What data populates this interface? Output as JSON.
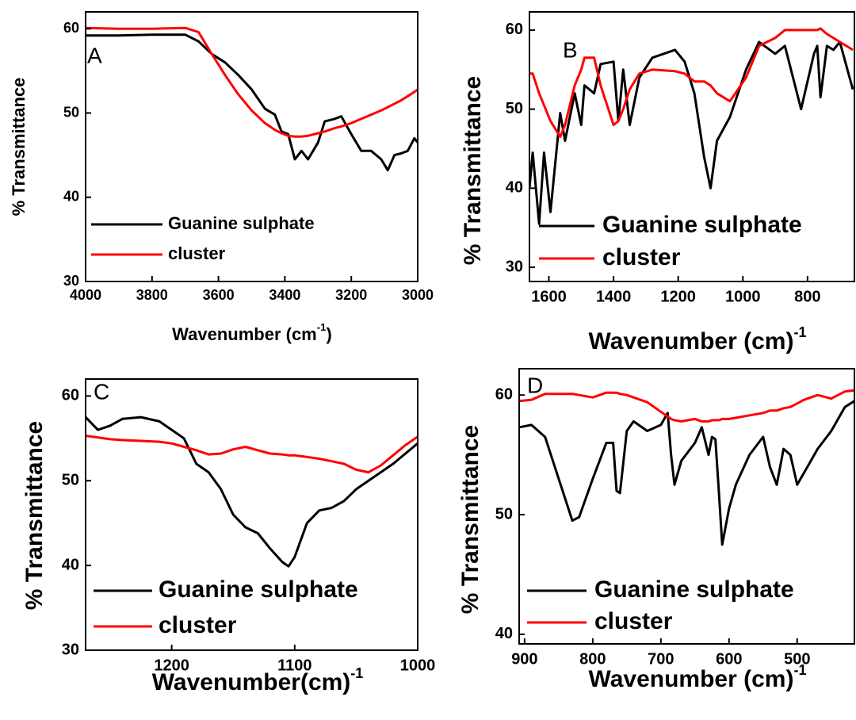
{
  "chart_data": [
    {
      "type": "line",
      "panel_label": "A",
      "y_label": "% Transmittance",
      "x_label": "Wavenumber (cm",
      "x_label_sup": "-1",
      "x_label_end": ")",
      "xlim": [
        4000,
        3000
      ],
      "xticks": [
        4000,
        3800,
        3600,
        3400,
        3200,
        3000
      ],
      "ylim": [
        30,
        62
      ],
      "yticks": [
        30,
        40,
        50,
        60
      ],
      "x": [
        4000,
        3900,
        3800,
        3700,
        3660,
        3620,
        3580,
        3540,
        3500,
        3460,
        3430,
        3410,
        3390,
        3370,
        3350,
        3330,
        3300,
        3280,
        3250,
        3230,
        3200,
        3170,
        3140,
        3110,
        3090,
        3070,
        3050,
        3030,
        3010,
        3000
      ],
      "series": [
        {
          "name": "Guanine sulphate",
          "color": "#000000",
          "values": [
            59.2,
            59.2,
            59.3,
            59.3,
            58.5,
            57.0,
            56.0,
            54.5,
            52.8,
            50.5,
            49.8,
            47.8,
            47.5,
            44.5,
            45.5,
            44.5,
            46.5,
            49.0,
            49.3,
            49.6,
            47.5,
            45.5,
            45.5,
            44.5,
            43.2,
            45.0,
            45.2,
            45.5,
            47.0,
            46.5
          ]
        },
        {
          "name": "cluster",
          "color": "#ff0000",
          "values": [
            60.1,
            60.0,
            60.0,
            60.1,
            59.6,
            57.0,
            54.5,
            52.2,
            50.3,
            48.8,
            48.0,
            47.6,
            47.3,
            47.2,
            47.2,
            47.3,
            47.6,
            47.8,
            48.2,
            48.4,
            48.8,
            49.3,
            49.8,
            50.3,
            50.7,
            51.1,
            51.5,
            52.0,
            52.5,
            52.8
          ]
        }
      ]
    },
    {
      "type": "line",
      "panel_label": "B",
      "y_label": "% Transmittance",
      "x_label": "Wavenumber (cm)",
      "x_label_sup": "-1",
      "xlim": [
        1660,
        655
      ],
      "xticks": [
        1600,
        1400,
        1200,
        1000,
        800
      ],
      "ylim": [
        28.2,
        62.3
      ],
      "yticks": [
        30,
        40,
        50,
        60
      ],
      "x": [
        1660,
        1650,
        1630,
        1615,
        1595,
        1565,
        1550,
        1520,
        1500,
        1490,
        1460,
        1440,
        1400,
        1385,
        1370,
        1350,
        1320,
        1280,
        1210,
        1180,
        1150,
        1120,
        1100,
        1080,
        1040,
        990,
        950,
        900,
        870,
        820,
        780,
        770,
        760,
        740,
        720,
        700,
        660
      ],
      "series": [
        {
          "name": "Guanine sulphate",
          "color": "#000000",
          "values": [
            40,
            44.5,
            35.5,
            44.5,
            37,
            49.5,
            46,
            52,
            48,
            53,
            52,
            55.7,
            56,
            48.5,
            55,
            48,
            54,
            56.5,
            57.5,
            56,
            52,
            44,
            40,
            46,
            49,
            55,
            58.5,
            57,
            58,
            50,
            57,
            58,
            51.5,
            58,
            57.5,
            58.5,
            52.5
          ]
        },
        {
          "name": "cluster",
          "color": "#ff0000",
          "values": [
            54.5,
            54.5,
            52,
            50.5,
            48.5,
            46.5,
            48,
            53,
            55,
            56.5,
            56.5,
            53,
            48,
            48.5,
            50,
            52.5,
            54.5,
            55,
            54.8,
            54.5,
            53.5,
            53.5,
            53,
            52,
            51,
            54,
            58,
            59,
            60,
            60,
            60,
            60,
            60.2,
            59.5,
            59,
            58.5,
            57.5
          ]
        }
      ]
    },
    {
      "type": "line",
      "panel_label": "C",
      "y_label": "% Transmittance",
      "x_label": "Wavenumber(cm)",
      "x_label_sup": "-1",
      "xlim": [
        1270,
        1000
      ],
      "xticks": [
        1200,
        1100,
        1000
      ],
      "ylim": [
        30,
        62
      ],
      "yticks": [
        30,
        40,
        50,
        60
      ],
      "x": [
        1270,
        1260,
        1250,
        1240,
        1225,
        1210,
        1200,
        1190,
        1180,
        1170,
        1160,
        1150,
        1140,
        1130,
        1120,
        1110,
        1105,
        1100,
        1090,
        1080,
        1070,
        1060,
        1050,
        1040,
        1030,
        1020,
        1010,
        1000
      ],
      "series": [
        {
          "name": "Guanine sulphate",
          "color": "#000000",
          "values": [
            57.5,
            56,
            56.5,
            57.3,
            57.5,
            57,
            56,
            55,
            52,
            51,
            49,
            46,
            44.5,
            43.8,
            42,
            40.4,
            39.9,
            41,
            45,
            46.5,
            46.8,
            47.6,
            49,
            50,
            51,
            52,
            53.2,
            54.4
          ]
        },
        {
          "name": "cluster",
          "color": "#ff0000",
          "values": [
            55.3,
            55.1,
            54.9,
            54.8,
            54.7,
            54.6,
            54.4,
            54.0,
            53.6,
            53.1,
            53.2,
            53.7,
            54.0,
            53.6,
            53.2,
            53.1,
            53.0,
            53.0,
            52.8,
            52.6,
            52.3,
            52.0,
            51.3,
            51.0,
            51.8,
            53.0,
            54.2,
            55.2
          ]
        }
      ]
    },
    {
      "type": "line",
      "panel_label": "D",
      "y_label": "% Transmittance",
      "x_label": "Wavenumber (cm)",
      "x_label_sup": "-1",
      "xlim": [
        908,
        416
      ],
      "xticks": [
        900,
        800,
        700,
        600,
        500
      ],
      "ylim": [
        39.2,
        62.2
      ],
      "yticks": [
        40,
        50,
        60
      ],
      "x": [
        908,
        890,
        870,
        850,
        830,
        820,
        800,
        780,
        770,
        765,
        760,
        750,
        740,
        720,
        700,
        690,
        685,
        680,
        670,
        650,
        640,
        630,
        625,
        620,
        615,
        610,
        605,
        600,
        590,
        570,
        550,
        540,
        530,
        520,
        510,
        500,
        490,
        470,
        450,
        430,
        416
      ],
      "series": [
        {
          "name": "Guanine sulphate",
          "color": "#000000",
          "values": [
            57.3,
            57.5,
            56.5,
            53,
            49.5,
            49.8,
            53,
            56,
            56,
            52,
            51.8,
            57,
            57.8,
            57,
            57.5,
            58.5,
            55,
            52.5,
            54.5,
            56,
            57.3,
            55,
            56.5,
            56.3,
            52,
            47.5,
            49,
            50.5,
            52.5,
            55,
            56.5,
            54,
            52.5,
            55.5,
            55,
            52.5,
            53.5,
            55.5,
            57,
            59,
            59.5
          ]
        },
        {
          "name": "cluster",
          "color": "#ff0000",
          "values": [
            59.5,
            59.6,
            60.1,
            60.1,
            60.1,
            60,
            59.8,
            60.2,
            60.2,
            60.2,
            60.1,
            60,
            59.8,
            59.4,
            58.6,
            58.2,
            58,
            57.9,
            57.8,
            58,
            57.8,
            57.8,
            57.9,
            57.9,
            57.9,
            58,
            58,
            58,
            58.1,
            58.3,
            58.5,
            58.7,
            58.7,
            58.9,
            59,
            59.3,
            59.6,
            60,
            59.7,
            60.3,
            60.4
          ]
        }
      ]
    }
  ]
}
